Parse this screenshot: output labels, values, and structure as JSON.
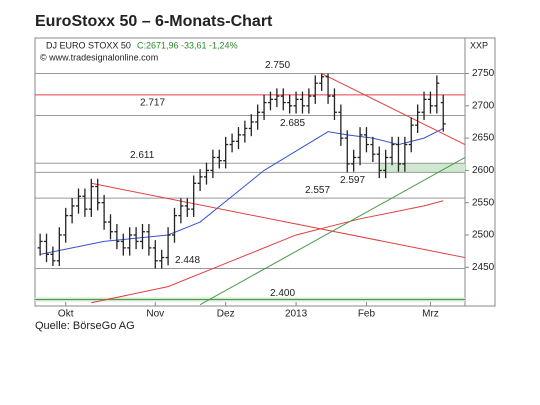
{
  "chart_data": {
    "type": "ohlc",
    "title": "EuroStoxx 50 – 6-Monats-Chart",
    "instrument": "DJ EURO STOXX 50",
    "quote": "C:2671,96 -33,61 -1,24%",
    "copyright": "© www.tradesignalonline.com",
    "axis_code": "XXP",
    "source": "Quelle: BörseGo AG",
    "xlim": [
      -0.8,
      66.4
    ],
    "ylim": [
      2390,
      2805
    ],
    "yticks": [
      2450,
      2500,
      2550,
      2600,
      2650,
      2700,
      2750
    ],
    "xticks": [
      {
        "value": 4,
        "label": "Okt"
      },
      {
        "value": 18,
        "label": "Nov"
      },
      {
        "value": 29,
        "label": "Dez"
      },
      {
        "value": 40,
        "label": "2013"
      },
      {
        "value": 51,
        "label": "Feb"
      },
      {
        "value": 61,
        "label": "Mrz"
      }
    ],
    "bar_color": "#222222",
    "open": [
      2480,
      2490,
      2470,
      2460,
      2500,
      2530,
      2545,
      2560,
      2540,
      2575,
      2550,
      2520,
      2505,
      2490,
      2480,
      2500,
      2490,
      2505,
      2480,
      2460,
      2465,
      2500,
      2530,
      2545,
      2540,
      2580,
      2590,
      2600,
      2620,
      2615,
      2640,
      2645,
      2655,
      2665,
      2675,
      2690,
      2705,
      2710,
      2715,
      2705,
      2700,
      2710,
      2700,
      2715,
      2735,
      2745,
      2715,
      2690,
      2650,
      2610,
      2620,
      2655,
      2640,
      2625,
      2600,
      2620,
      2640,
      2610,
      2640,
      2670,
      2690,
      2710,
      2700,
      2705
    ],
    "high": [
      2502,
      2502,
      2482,
      2512,
      2542,
      2557,
      2572,
      2572,
      2587,
      2587,
      2562,
      2532,
      2517,
      2502,
      2512,
      2512,
      2517,
      2517,
      2492,
      2477,
      2512,
      2542,
      2557,
      2557,
      2592,
      2602,
      2612,
      2632,
      2632,
      2652,
      2657,
      2667,
      2677,
      2687,
      2702,
      2717,
      2722,
      2727,
      2727,
      2717,
      2722,
      2722,
      2727,
      2747,
      2750,
      2750,
      2727,
      2702,
      2662,
      2632,
      2667,
      2667,
      2652,
      2637,
      2632,
      2652,
      2652,
      2652,
      2682,
      2702,
      2722,
      2722,
      2747,
      2717
    ],
    "low": [
      2468,
      2458,
      2452,
      2452,
      2488,
      2518,
      2533,
      2528,
      2528,
      2538,
      2508,
      2493,
      2478,
      2468,
      2468,
      2478,
      2478,
      2468,
      2448,
      2448,
      2453,
      2488,
      2518,
      2528,
      2528,
      2568,
      2578,
      2588,
      2603,
      2603,
      2628,
      2633,
      2643,
      2653,
      2663,
      2678,
      2693,
      2698,
      2693,
      2688,
      2688,
      2688,
      2688,
      2703,
      2723,
      2703,
      2678,
      2638,
      2597,
      2598,
      2608,
      2628,
      2613,
      2588,
      2588,
      2608,
      2598,
      2598,
      2628,
      2658,
      2678,
      2688,
      2688,
      2660
    ],
    "close": [
      2490,
      2470,
      2460,
      2500,
      2530,
      2545,
      2560,
      2540,
      2575,
      2550,
      2520,
      2505,
      2490,
      2480,
      2500,
      2490,
      2505,
      2480,
      2460,
      2465,
      2500,
      2530,
      2545,
      2540,
      2580,
      2590,
      2600,
      2620,
      2615,
      2640,
      2645,
      2655,
      2665,
      2675,
      2690,
      2705,
      2710,
      2715,
      2705,
      2700,
      2710,
      2700,
      2715,
      2735,
      2745,
      2715,
      2690,
      2650,
      2610,
      2620,
      2655,
      2640,
      2625,
      2600,
      2620,
      2640,
      2610,
      2640,
      2670,
      2690,
      2710,
      2700,
      2735,
      2672
    ],
    "lines": [
      {
        "color": "#3355cc",
        "x": [
          0,
          10,
          20,
          25,
          30,
          35,
          40,
          45,
          48,
          52,
          56,
          60,
          63
        ],
        "values": [
          2470,
          2490,
          2500,
          2520,
          2560,
          2600,
          2630,
          2660,
          2655,
          2650,
          2640,
          2650,
          2665
        ]
      },
      {
        "color": "#e04040",
        "x": [
          8,
          20,
          30,
          40,
          50,
          60,
          63
        ],
        "values": [
          2395,
          2420,
          2460,
          2500,
          2525,
          2545,
          2553
        ]
      },
      {
        "color": "#e04040",
        "x": [
          8,
          66.4
        ],
        "values": [
          2580,
          2465
        ]
      },
      {
        "color": "#e04040",
        "x": [
          44,
          66.4
        ],
        "values": [
          2750,
          2640
        ]
      },
      {
        "color": "#4a9a4a",
        "x": [
          25,
          66.4
        ],
        "values": [
          2392,
          2620
        ]
      }
    ],
    "levels": [
      {
        "value": 2750,
        "label": "2.750",
        "color": "#999999"
      },
      {
        "value": 2717,
        "label": "2.717",
        "color": "#e04040"
      },
      {
        "value": 2685,
        "label": "2.685",
        "color": "#999999"
      },
      {
        "value": 2611,
        "label": "2.611",
        "color": "#999999"
      },
      {
        "value": 2597,
        "label": "2.597",
        "color": "#999999"
      },
      {
        "value": 2557,
        "label": "2.557",
        "color": "#999999"
      },
      {
        "value": 2448,
        "label": "2.448",
        "color": "#999999"
      },
      {
        "value": 2400,
        "label": "2.400",
        "color": "#4a9a4a"
      }
    ]
  }
}
